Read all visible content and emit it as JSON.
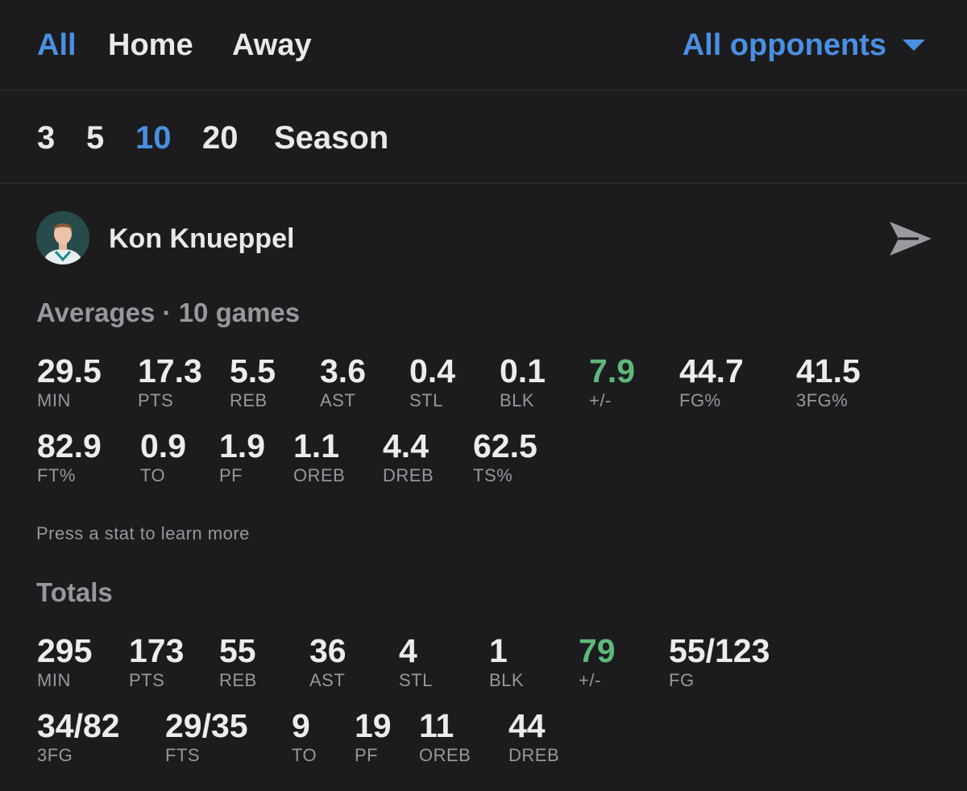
{
  "filters": {
    "location_tabs": [
      "All",
      "Home",
      "Away"
    ],
    "opponent_select": "All opponents",
    "game_ranges": [
      "3",
      "5",
      "10",
      "20",
      "Season"
    ]
  },
  "player": {
    "name": "Kon Knueppel"
  },
  "averages": {
    "heading": "Averages · 10 games",
    "stats": [
      {
        "value": "29.5",
        "label": "MIN"
      },
      {
        "value": "17.3",
        "label": "PTS"
      },
      {
        "value": "5.5",
        "label": "REB"
      },
      {
        "value": "3.6",
        "label": "AST"
      },
      {
        "value": "0.4",
        "label": "STL"
      },
      {
        "value": "0.1",
        "label": "BLK"
      },
      {
        "value": "7.9",
        "label": "+/-"
      },
      {
        "value": "44.7",
        "label": "FG%"
      },
      {
        "value": "41.5",
        "label": "3FG%"
      },
      {
        "value": "82.9",
        "label": "FT%"
      },
      {
        "value": "0.9",
        "label": "TO"
      },
      {
        "value": "1.9",
        "label": "PF"
      },
      {
        "value": "1.1",
        "label": "OREB"
      },
      {
        "value": "4.4",
        "label": "DREB"
      },
      {
        "value": "62.5",
        "label": "TS%"
      }
    ],
    "hint": "Press a stat to learn more"
  },
  "totals": {
    "heading": "Totals",
    "stats": [
      {
        "value": "295",
        "label": "MIN"
      },
      {
        "value": "173",
        "label": "PTS"
      },
      {
        "value": "55",
        "label": "REB"
      },
      {
        "value": "36",
        "label": "AST"
      },
      {
        "value": "4",
        "label": "STL"
      },
      {
        "value": "1",
        "label": "BLK"
      },
      {
        "value": "79",
        "label": "+/-"
      },
      {
        "value": "55/123",
        "label": "FG"
      },
      {
        "value": "34/82",
        "label": "3FG"
      },
      {
        "value": "29/35",
        "label": "FTS"
      },
      {
        "value": "9",
        "label": "TO"
      },
      {
        "value": "19",
        "label": "PF"
      },
      {
        "value": "11",
        "label": "OREB"
      },
      {
        "value": "44",
        "label": "DREB"
      }
    ]
  },
  "colors": {
    "background": "#1c1c1e",
    "accent": "#4a90e2",
    "positive": "#5fb87a",
    "muted": "#97979c"
  }
}
